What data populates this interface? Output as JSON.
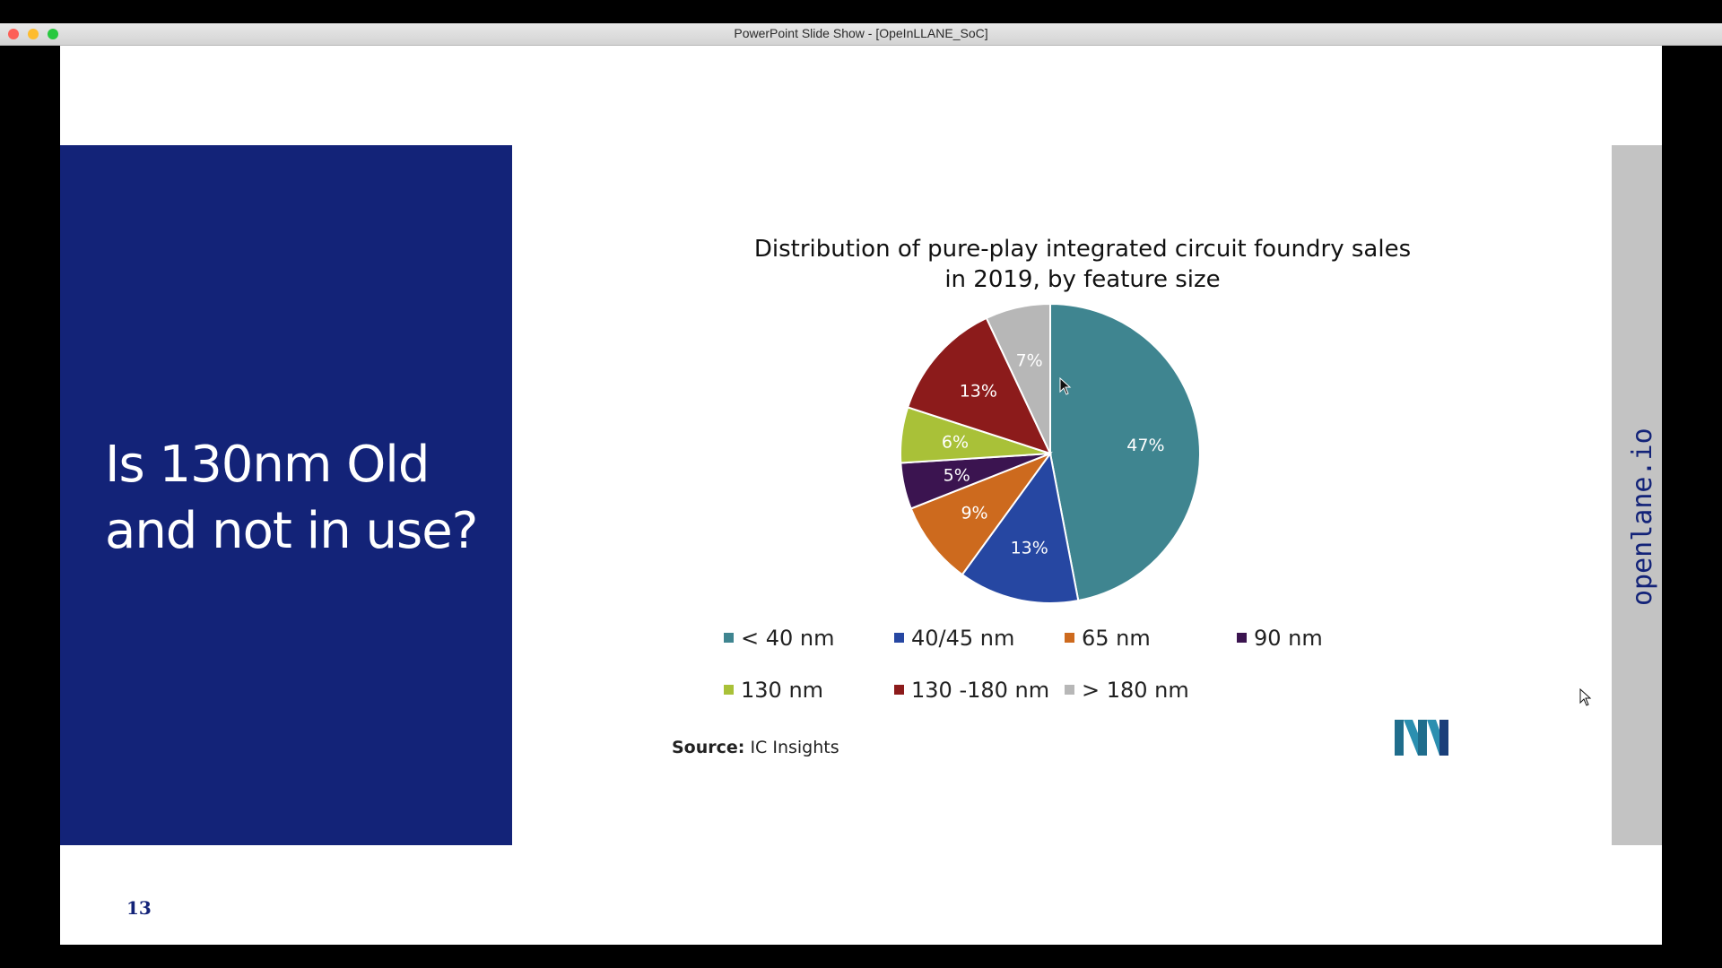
{
  "window": {
    "title": "PowerPoint Slide Show - [OpeInLLANE_SoC]",
    "traffic_lights": [
      {
        "name": "close",
        "color": "#fc5f57"
      },
      {
        "name": "minimize",
        "color": "#fdbc2e"
      },
      {
        "name": "zoom",
        "color": "#28c840"
      }
    ]
  },
  "slide": {
    "heading_line1": "Is 130nm Old",
    "heading_line2": "and not in use?",
    "side_brand": "openlane.io",
    "page_number": "13",
    "source_label": "Source:",
    "source_value": "IC Insights",
    "colors": {
      "panel": "#132378",
      "side_bar": "#c3c3c3"
    }
  },
  "chart_data": {
    "type": "pie",
    "title_line1": "Distribution of pure-play integrated circuit foundry sales",
    "title_line2": "in 2019, by feature size",
    "start_angle": "12 o'clock, clockwise",
    "legend_placement": "bottom",
    "slices": [
      {
        "name": "< 40 nm",
        "value": 47,
        "label": "47%",
        "color": "#3f8590"
      },
      {
        "name": "40/45 nm",
        "value": 13,
        "label": "13%",
        "color": "#2647a2"
      },
      {
        "name": "65 nm",
        "value": 9,
        "label": "9%",
        "color": "#cd6a1e"
      },
      {
        "name": "90 nm",
        "value": 5,
        "label": "5%",
        "color": "#3b1450"
      },
      {
        "name": "130 nm",
        "value": 6,
        "label": "6%",
        "color": "#a9c138"
      },
      {
        "name": "130 -180 nm",
        "value": 13,
        "label": "13%",
        "color": "#8c1b1b"
      },
      {
        "name": "> 180 nm",
        "value": 7,
        "label": "7%",
        "color": "#b7b7b7"
      }
    ]
  }
}
